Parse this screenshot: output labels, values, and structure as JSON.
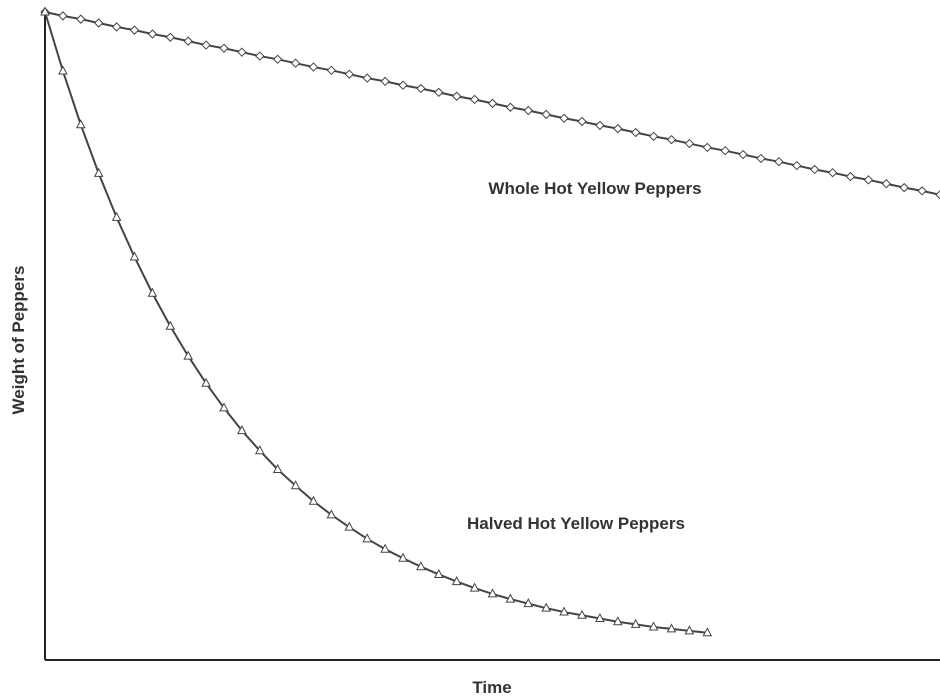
{
  "chart_data": {
    "type": "line",
    "x_label": "Time",
    "y_label": "Weight of Peppers",
    "xlim": [
      0,
      100
    ],
    "ylim": [
      0,
      100
    ],
    "series": [
      {
        "name": "Whole Hot Yellow Peppers",
        "color": "#444444",
        "marker": "diamond",
        "x": [
          0,
          2,
          4,
          6,
          8,
          10,
          12,
          14,
          16,
          18,
          20,
          22,
          24,
          26,
          28,
          30,
          32,
          34,
          36,
          38,
          40,
          42,
          44,
          46,
          48,
          50,
          52,
          54,
          56,
          58,
          60,
          62,
          64,
          66,
          68,
          70,
          72,
          74,
          76,
          78,
          80,
          82,
          84,
          86,
          88,
          90,
          92,
          94,
          96,
          98,
          100
        ],
        "values": [
          100,
          99.4,
          98.9,
          98.3,
          97.7,
          97.2,
          96.6,
          96.1,
          95.5,
          94.9,
          94.4,
          93.8,
          93.2,
          92.7,
          92.1,
          91.5,
          91.0,
          90.4,
          89.8,
          89.3,
          88.7,
          88.2,
          87.6,
          87.0,
          86.5,
          85.9,
          85.3,
          84.8,
          84.2,
          83.6,
          83.1,
          82.5,
          82.0,
          81.4,
          80.8,
          80.3,
          79.7,
          79.1,
          78.6,
          78.0,
          77.4,
          76.9,
          76.3,
          75.7,
          75.2,
          74.6,
          74.1,
          73.5,
          72.9,
          72.4,
          71.8
        ]
      },
      {
        "name": "Halved Hot Yellow Peppers",
        "color": "#444444",
        "marker": "triangle",
        "x": [
          0,
          2,
          4,
          6,
          8,
          10,
          12,
          14,
          16,
          18,
          20,
          22,
          24,
          26,
          28,
          30,
          32,
          34,
          36,
          38,
          40,
          42,
          44,
          46,
          48,
          50,
          52,
          54,
          56,
          58,
          60,
          62,
          64,
          66,
          68,
          70,
          72,
          74
        ],
        "values": [
          100.0,
          90.9,
          82.6,
          75.1,
          68.3,
          62.2,
          56.6,
          51.5,
          46.9,
          42.7,
          38.9,
          35.4,
          32.3,
          29.4,
          26.9,
          24.5,
          22.4,
          20.5,
          18.7,
          17.1,
          15.7,
          14.4,
          13.2,
          12.1,
          11.1,
          10.2,
          9.4,
          8.7,
          8.0,
          7.4,
          6.9,
          6.4,
          5.9,
          5.5,
          5.1,
          4.8,
          4.5,
          4.2
        ]
      }
    ]
  }
}
